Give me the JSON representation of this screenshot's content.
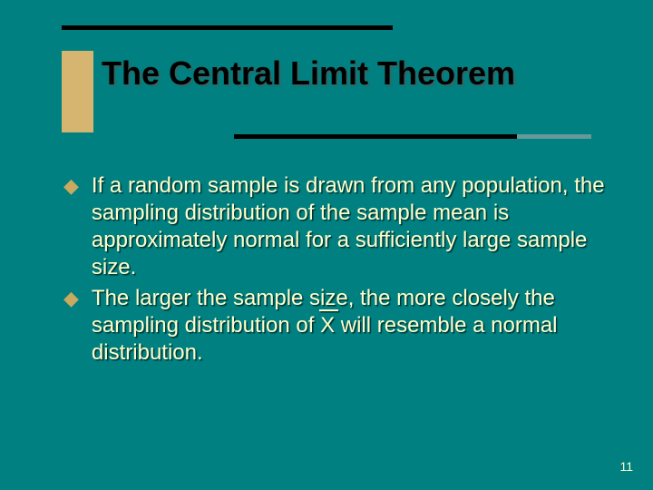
{
  "background_color": "#008080",
  "accent_color": "#d6b570",
  "line_color": "#000000",
  "overlay_color": "#669999",
  "body_text_color": "#ffffcc",
  "title_text_color": "#000000",
  "title_fontsize": 36,
  "body_fontsize": 24,
  "title": "The Central Limit Theorem",
  "bullets": [
    "If a random sample is drawn from any population, the sampling distribution of the sample mean is approximately normal for a sufficiently large sample size.",
    "The larger the sample size, the more closely the sampling distribution of X will resemble a normal distribution."
  ],
  "bullet2_prefix": "The larger the sample size, the more closely the sampling distribution of ",
  "bullet2_xbar": "X",
  "bullet2_suffix": " will resemble a normal distribution.",
  "page_number": "11"
}
